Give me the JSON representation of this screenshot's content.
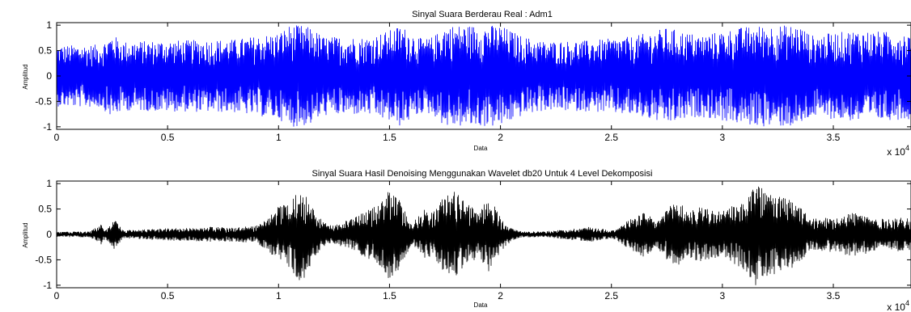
{
  "chart_data": [
    {
      "type": "line",
      "title": "Sinyal Suara Berderau Real : Adm1",
      "xlabel": "Data",
      "ylabel": "Amplitud",
      "xlim": [
        0,
        38500
      ],
      "ylim": [
        -1.05,
        1.05
      ],
      "x_ticks": [
        0,
        5000,
        10000,
        15000,
        20000,
        25000,
        30000,
        35000
      ],
      "x_tick_labels": [
        "0",
        "0.5",
        "1",
        "1.5",
        "2",
        "2.5",
        "3",
        "3.5"
      ],
      "y_ticks": [
        1,
        0.5,
        0,
        -0.5,
        -1
      ],
      "y_tick_labels": [
        "1",
        "0.5",
        "0",
        "-0.5",
        "-1"
      ],
      "exponent_label": "x 10",
      "exponent_power": "4",
      "grid": false,
      "series": [
        {
          "color": "#0000ff",
          "envelope": {
            "x": [
              0,
              2000,
              2500,
              3000,
              5000,
              8000,
              10000,
              10500,
              11000,
              11500,
              12000,
              14000,
              15000,
              15500,
              16000,
              16500,
              17000,
              17500,
              18000,
              19000,
              20000,
              21000,
              22000,
              24000,
              26000,
              27500,
              29000,
              31000,
              32000,
              33000,
              33500,
              34000,
              36000,
              38500
            ],
            "y": [
              0.6,
              0.62,
              0.82,
              0.68,
              0.7,
              0.72,
              0.85,
              1.0,
              1.0,
              0.95,
              0.78,
              0.76,
              0.9,
              1.0,
              0.85,
              0.72,
              0.78,
              1.0,
              1.0,
              1.0,
              1.0,
              0.78,
              0.68,
              0.7,
              0.78,
              0.95,
              0.8,
              0.97,
              1.0,
              1.0,
              1.0,
              0.8,
              0.9,
              0.85
            ]
          }
        }
      ]
    },
    {
      "type": "line",
      "title": "Sinyal Suara Hasil Denoising Menggunakan Wavelet db20 Untuk 4 Level Dekomposisi",
      "xlabel": "Data",
      "ylabel": "Amplitud",
      "xlim": [
        0,
        38500
      ],
      "ylim": [
        -1.05,
        1.05
      ],
      "x_ticks": [
        0,
        5000,
        10000,
        15000,
        20000,
        25000,
        30000,
        35000
      ],
      "x_tick_labels": [
        "0",
        "0.5",
        "1",
        "1.5",
        "2",
        "2.5",
        "3",
        "3.5"
      ],
      "y_ticks": [
        1,
        0.5,
        0,
        -0.5,
        -1
      ],
      "y_tick_labels": [
        "1",
        "0.5",
        "0",
        "-0.5",
        "-1"
      ],
      "exponent_label": "x 10",
      "exponent_power": "4",
      "grid": false,
      "series": [
        {
          "color": "#000000",
          "envelope": {
            "x": [
              0,
              1500,
              2000,
              2200,
              2600,
              3000,
              4000,
              5000,
              6000,
              7000,
              8000,
              9000,
              9500,
              10000,
              10500,
              11000,
              11500,
              12000,
              12500,
              13500,
              14500,
              15000,
              15500,
              16000,
              16500,
              17000,
              17500,
              18000,
              18500,
              19000,
              19500,
              20000,
              20500,
              21000,
              22000,
              23000,
              24000,
              24500,
              25000,
              25500,
              26000,
              26500,
              27000,
              27500,
              28000,
              28500,
              29000,
              30000,
              31000,
              31500,
              32000,
              32500,
              33000,
              33500,
              34000,
              35000,
              36000,
              37000,
              38500
            ],
            "y": [
              0.05,
              0.06,
              0.2,
              0.08,
              0.3,
              0.08,
              0.1,
              0.12,
              0.13,
              0.15,
              0.14,
              0.18,
              0.3,
              0.55,
              0.65,
              1.0,
              0.55,
              0.25,
              0.18,
              0.35,
              0.6,
              0.9,
              0.65,
              0.2,
              0.5,
              0.45,
              0.8,
              0.85,
              0.6,
              0.45,
              0.75,
              0.35,
              0.12,
              0.06,
              0.06,
              0.1,
              0.15,
              0.12,
              0.08,
              0.2,
              0.35,
              0.45,
              0.25,
              0.5,
              0.7,
              0.45,
              0.55,
              0.45,
              0.7,
              1.0,
              0.85,
              0.75,
              0.7,
              0.55,
              0.3,
              0.35,
              0.45,
              0.3,
              0.35
            ]
          }
        }
      ]
    }
  ]
}
